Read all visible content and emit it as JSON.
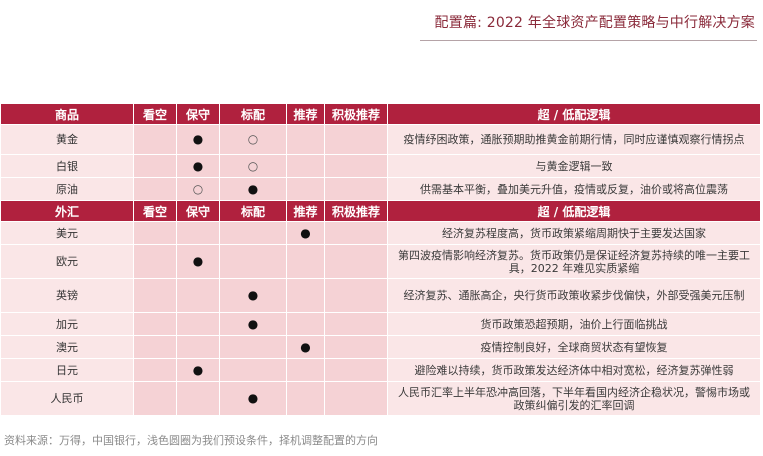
{
  "title": "配置篇: 2022 年全球资产配置策略与中行解决方案",
  "sections": [
    {
      "header": {
        "category": "商品",
        "columns": [
          "看空",
          "保守",
          "标配",
          "推荐",
          "积极推荐"
        ],
        "logic": "超 / 低配逻辑"
      },
      "rows": [
        {
          "name": "黄金",
          "marks": [
            "",
            "●",
            "○",
            "",
            ""
          ],
          "logic": "疫情纾困政策，通胀预期助推黄金前期行情，同时应谨慎观察行情拐点"
        },
        {
          "name": "白银",
          "marks": [
            "",
            "●",
            "○",
            "",
            ""
          ],
          "logic": "与黄金逻辑一致"
        },
        {
          "name": "原油",
          "marks": [
            "",
            "○",
            "●",
            "",
            ""
          ],
          "logic": "供需基本平衡，叠加美元升值，疫情或反复，油价或将高位震荡"
        }
      ]
    },
    {
      "header": {
        "category": "外汇",
        "columns": [
          "看空",
          "保守",
          "标配",
          "推荐",
          "积极推荐"
        ],
        "logic": "超 / 低配逻辑"
      },
      "rows": [
        {
          "name": "美元",
          "marks": [
            "",
            "",
            "",
            "●",
            ""
          ],
          "logic": "经济复苏程度高，货币政策紧缩周期快于主要发达国家"
        },
        {
          "name": "欧元",
          "marks": [
            "",
            "●",
            "",
            "",
            ""
          ],
          "logic": "第四波疫情影响经济复苏。货币政策仍是保证经济复苏持续的唯一主要工具，2022 年难见实质紧缩"
        },
        {
          "name": "英镑",
          "marks": [
            "",
            "",
            "●",
            "",
            ""
          ],
          "logic": "经济复苏、通胀高企，央行货币政策收紧步伐偏快，外部受强美元压制"
        },
        {
          "name": "加元",
          "marks": [
            "",
            "",
            "●",
            "",
            ""
          ],
          "logic": "货币政策恐超预期，油价上行面临挑战"
        },
        {
          "name": "澳元",
          "marks": [
            "",
            "",
            "",
            "●",
            ""
          ],
          "logic": "疫情控制良好，全球商贸状态有望恢复"
        },
        {
          "name": "日元",
          "marks": [
            "",
            "●",
            "",
            "",
            ""
          ],
          "logic": "避险难以持续，货币政策发达经济体中相对宽松，经济复苏弹性弱"
        },
        {
          "name": "人民币",
          "marks": [
            "",
            "",
            "●",
            "",
            ""
          ],
          "logic": "人民币汇率上半年恐冲高回落，下半年看国内经济企稳状况，警惕市场或政策纠偏引发的汇率回调"
        }
      ]
    }
  ],
  "source": "资料来源：万得，中国银行，浅色圆圈为我们预设条件，择机调整配置的方向",
  "colors": {
    "header": "#b0213e",
    "row": "#fae6e7",
    "title": "#8a2a3a"
  }
}
